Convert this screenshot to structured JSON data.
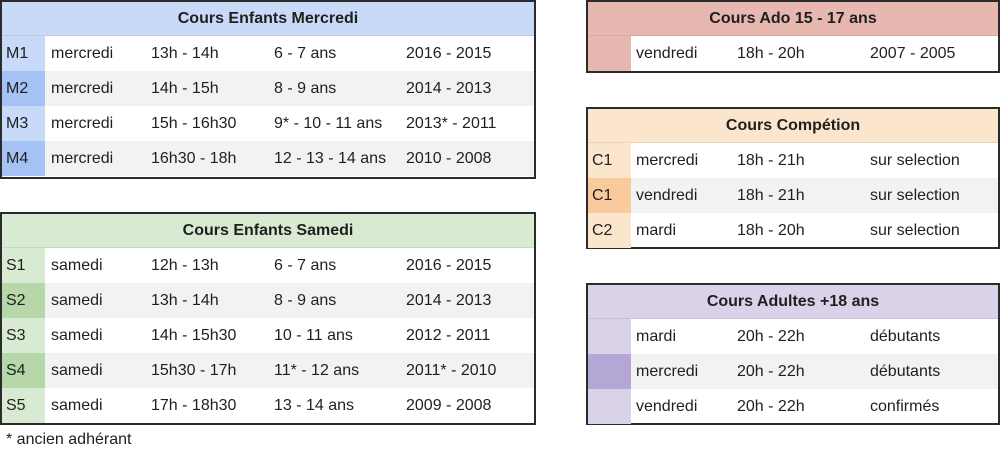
{
  "tables": {
    "mercredi": {
      "title": "Cours Enfants Mercredi",
      "header_color": "#c9daf8",
      "code_color": "#c9daf8",
      "code_color_alt": "#a4c2f4",
      "rows": [
        {
          "code": "M1",
          "day": "mercredi",
          "time": "13h - 14h",
          "age": "6 - 7 ans",
          "years": "2016 - 2015"
        },
        {
          "code": "M2",
          "day": "mercredi",
          "time": "14h - 15h",
          "age": "8 - 9 ans",
          "years": "2014 - 2013"
        },
        {
          "code": "M3",
          "day": "mercredi",
          "time": "15h - 16h30",
          "age": "9* - 10 - 11 ans",
          "years": "2013* - 2011"
        },
        {
          "code": "M4",
          "day": "mercredi",
          "time": "16h30 - 18h",
          "age": "12 - 13 - 14 ans",
          "years": "2010 - 2008"
        }
      ]
    },
    "samedi": {
      "title": "Cours Enfants Samedi",
      "header_color": "#d9ead3",
      "code_color": "#d9ead3",
      "code_color_alt": "#b6d7a8",
      "rows": [
        {
          "code": "S1",
          "day": "samedi",
          "time": "12h - 13h",
          "age": "6 - 7 ans",
          "years": "2016 - 2015"
        },
        {
          "code": "S2",
          "day": "samedi",
          "time": "13h - 14h",
          "age": "8 - 9 ans",
          "years": "2014 - 2013"
        },
        {
          "code": "S3",
          "day": "samedi",
          "time": "14h - 15h30",
          "age": "10 - 11 ans",
          "years": "2012 - 2011"
        },
        {
          "code": "S4",
          "day": "samedi",
          "time": "15h30 - 17h",
          "age": "11* - 12 ans",
          "years": "2011* - 2010"
        },
        {
          "code": "S5",
          "day": "samedi",
          "time": "17h - 18h30",
          "age": "13 - 14 ans",
          "years": "2009 - 2008"
        }
      ]
    },
    "ado": {
      "title": "Cours Ado 15 - 17 ans",
      "header_color": "#e6b8af",
      "code_color": "#e6b8af",
      "rows": [
        {
          "code": "",
          "day": "vendredi",
          "time": "18h - 20h",
          "info": "2007 - 2005"
        }
      ]
    },
    "competition": {
      "title": "Cours Compétion",
      "header_color": "#fce5cd",
      "code_color": "#fce5cd",
      "code_color_alt": "#f9cb9c",
      "rows": [
        {
          "code": "C1",
          "day": "mercredi",
          "time": "18h - 21h",
          "info": "sur selection"
        },
        {
          "code": "C1",
          "day": "vendredi",
          "time": "18h - 21h",
          "info": "sur selection"
        },
        {
          "code": "C2",
          "day": "mardi",
          "time": "18h - 20h",
          "info": "sur selection"
        }
      ]
    },
    "adultes": {
      "title": "Cours Adultes +18 ans",
      "header_color": "#d9d2e9",
      "code_color": "#d9d2e9",
      "code_color_alt": "#b4a7d6",
      "rows": [
        {
          "code": "",
          "day": "mardi",
          "time": "20h - 22h",
          "info": "débutants"
        },
        {
          "code": "",
          "day": "mercredi",
          "time": "20h - 22h",
          "info": "débutants"
        },
        {
          "code": "",
          "day": "vendredi",
          "time": "20h - 22h",
          "info": "confirmés"
        }
      ]
    }
  },
  "footnote": "* ancien adhérant"
}
